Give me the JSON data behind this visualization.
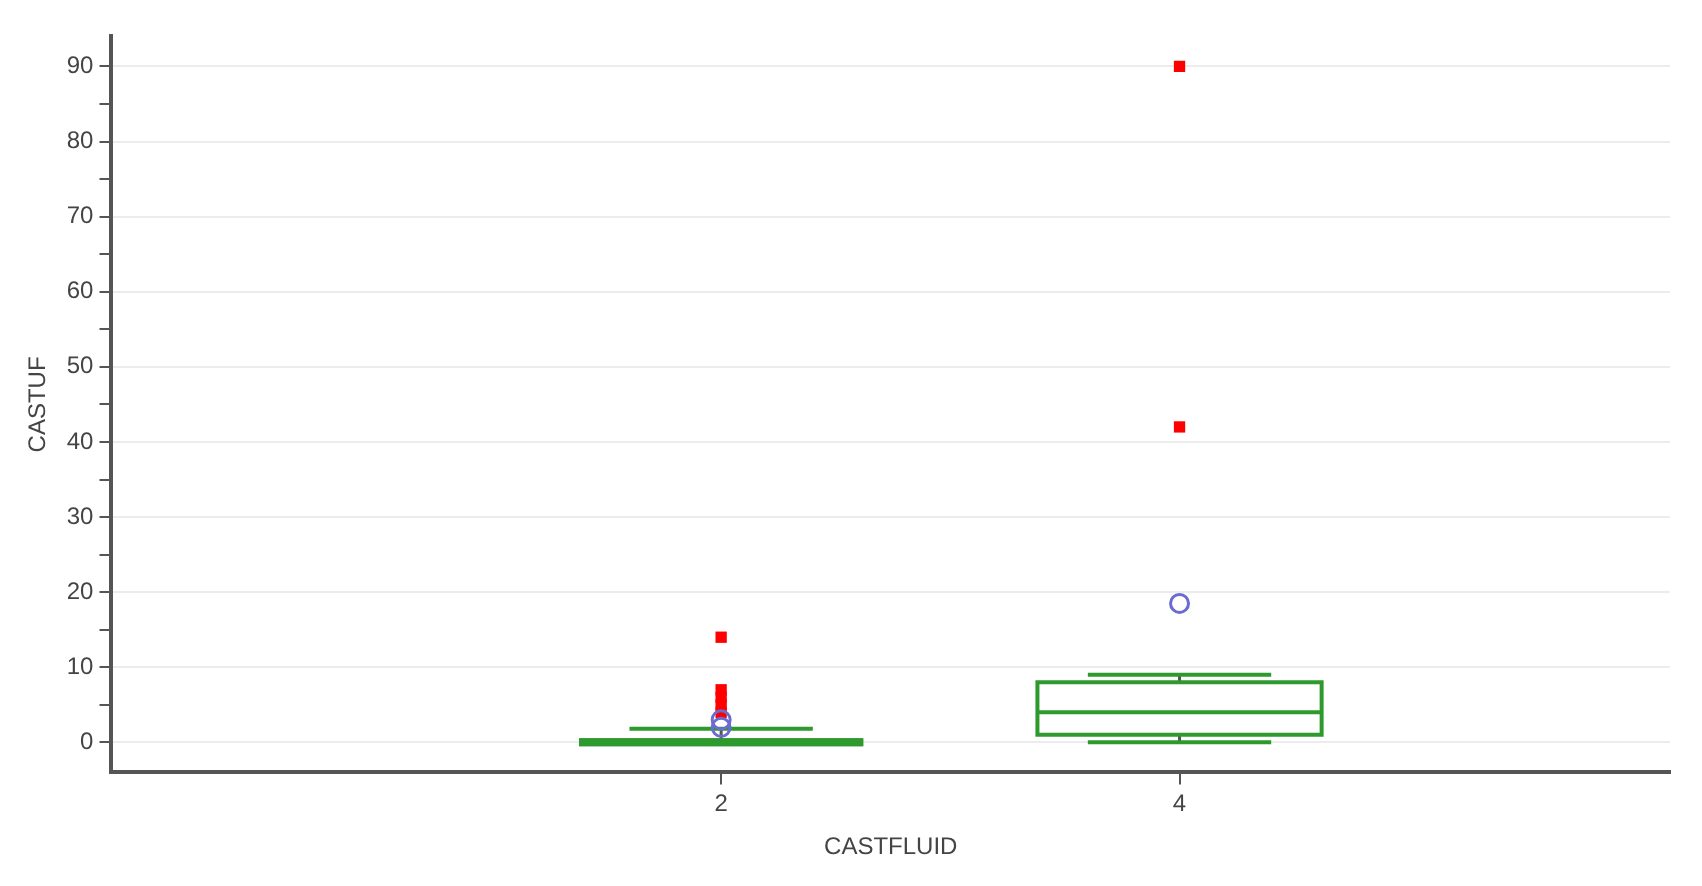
{
  "chart_data": {
    "type": "box",
    "xlabel": "CASTFLUID",
    "ylabel": "CASTUF",
    "categories": [
      "2",
      "4"
    ],
    "ylim": [
      -4,
      94
    ],
    "yticks": [
      0,
      {
        "value": 5,
        "label": null
      },
      10,
      {
        "value": 15,
        "label": null
      },
      20,
      {
        "value": 25,
        "label": null
      },
      30,
      {
        "value": 35,
        "label": null
      },
      40,
      {
        "value": 45,
        "label": null
      },
      50,
      {
        "value": 55,
        "label": null
      },
      60,
      {
        "value": 65,
        "label": null
      },
      70,
      {
        "value": 75,
        "label": null
      },
      80,
      {
        "value": 85,
        "label": null
      },
      90
    ],
    "grid": "y",
    "legend": false,
    "series": [
      {
        "color": "#2e9a2e",
        "boxes": [
          {
            "low": 0,
            "q1": 0,
            "median": 0,
            "q3": 0,
            "high": 1.8
          },
          {
            "low": 0,
            "q1": 1,
            "median": 4,
            "q3": 8,
            "high": 9
          }
        ]
      },
      {
        "type": "scatter",
        "color": "#6b6bd0",
        "marker": "circle",
        "x": [
          "2",
          "2",
          "4"
        ],
        "values": [
          2,
          3,
          18.5
        ]
      },
      {
        "type": "scatter",
        "color": "#ff0000",
        "marker": "square",
        "x": [
          "2",
          "2",
          "2",
          "2",
          "2",
          "4",
          "4"
        ],
        "values": [
          14,
          7,
          6,
          5,
          4,
          42,
          90
        ]
      }
    ]
  }
}
